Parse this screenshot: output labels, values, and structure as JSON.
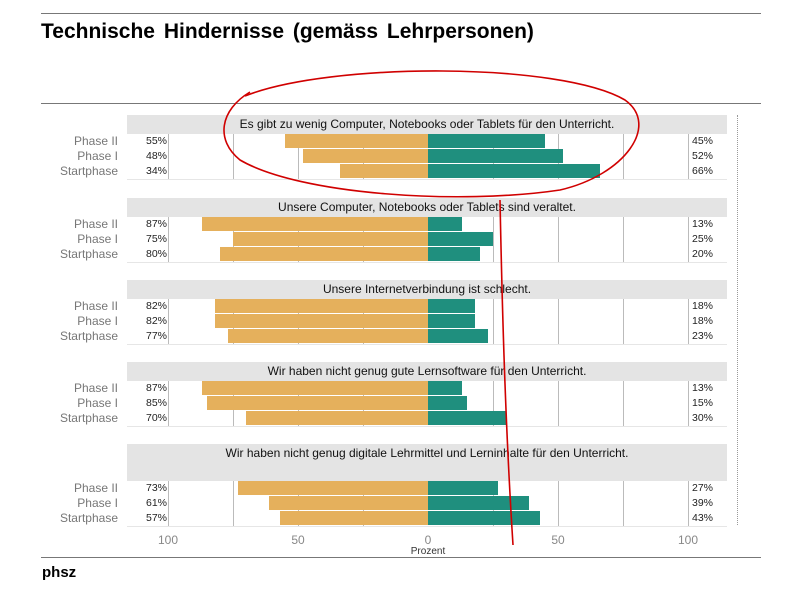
{
  "header": {
    "title": "Technische Hindernisse (gemäss Lehrpersonen)"
  },
  "footer": {
    "logo_text": "phsz"
  },
  "colors": {
    "left": "#e5b05c",
    "right": "#1f8f7e",
    "annotation": "#d00000"
  },
  "chart_data": {
    "type": "bar",
    "orientation": "horizontal",
    "stacked": "diverging",
    "xlabel": "Prozent",
    "xlim": [
      -100,
      100
    ],
    "xticks": [
      "100",
      "50",
      "0",
      "50",
      "100"
    ],
    "categories": [
      "Phase II",
      "Phase I",
      "Startphase"
    ],
    "panels": [
      {
        "title": "Es gibt zu wenig Computer, Notebooks oder Tablets für den Unterricht.",
        "left": [
          55,
          48,
          34
        ],
        "right": [
          45,
          52,
          66
        ]
      },
      {
        "title": "Unsere Computer, Notebooks oder Tablets sind veraltet.",
        "left": [
          87,
          75,
          80
        ],
        "right": [
          13,
          25,
          20
        ]
      },
      {
        "title": "Unsere Internetverbindung ist schlecht.",
        "left": [
          82,
          82,
          77
        ],
        "right": [
          18,
          18,
          23
        ]
      },
      {
        "title": "Wir haben nicht genug gute Lernsoftware für den Unterricht.",
        "left": [
          87,
          85,
          70
        ],
        "right": [
          13,
          15,
          30
        ]
      },
      {
        "title": "Wir haben nicht genug digitale Lehrmittel und Lerninhalte für den Unterricht.",
        "left": [
          73,
          61,
          57
        ],
        "right": [
          27,
          39,
          43
        ]
      }
    ],
    "grid": true
  }
}
